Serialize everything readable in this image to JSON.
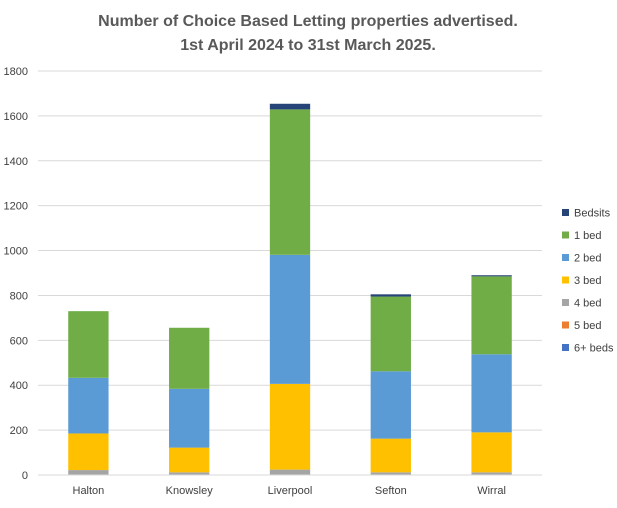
{
  "chart_data": {
    "type": "bar",
    "stacked": true,
    "title": [
      "Number of Choice Based Letting properties advertised.",
      "1st April 2024 to 31st March 2025."
    ],
    "xlabel": "",
    "ylabel": "",
    "ylim": [
      0,
      1800
    ],
    "yticks": [
      0,
      200,
      400,
      600,
      800,
      1000,
      1200,
      1400,
      1600,
      1800
    ],
    "grid": true,
    "legend_position": "right",
    "categories": [
      "Halton",
      "Knowsley",
      "Liverpool",
      "Sefton",
      "Wirral"
    ],
    "series": [
      {
        "name": "6+ beds",
        "color": "#4472c4",
        "values": [
          0,
          0,
          0,
          0,
          0
        ]
      },
      {
        "name": "5 bed",
        "color": "#ed7d31",
        "values": [
          0,
          0,
          2,
          0,
          0
        ]
      },
      {
        "name": "4 bed",
        "color": "#a5a5a5",
        "values": [
          22,
          12,
          22,
          12,
          12
        ]
      },
      {
        "name": "3 bed",
        "color": "#ffc000",
        "values": [
          163,
          110,
          382,
          150,
          178
        ]
      },
      {
        "name": "2 bed",
        "color": "#5b9bd5",
        "values": [
          248,
          262,
          575,
          300,
          348
        ]
      },
      {
        "name": "1 bed",
        "color": "#70ad47",
        "values": [
          297,
          272,
          648,
          333,
          347
        ]
      },
      {
        "name": "Bedsits",
        "color": "#264478",
        "values": [
          0,
          0,
          25,
          10,
          5
        ]
      }
    ]
  }
}
